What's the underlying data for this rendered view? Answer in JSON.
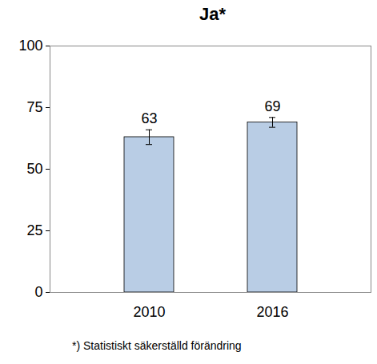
{
  "chart_data": {
    "type": "bar",
    "title": "Ja*",
    "categories": [
      "2010",
      "2016"
    ],
    "values": [
      63,
      69
    ],
    "error_low": [
      60,
      67
    ],
    "error_high": [
      66,
      71
    ],
    "color": "#b9cde5",
    "ylim": [
      0,
      100
    ],
    "yticks": [
      0,
      25,
      50,
      75,
      100
    ],
    "grid": false,
    "data_labels": true,
    "footnote": "*) Statistiskt säkerställd förändring"
  }
}
